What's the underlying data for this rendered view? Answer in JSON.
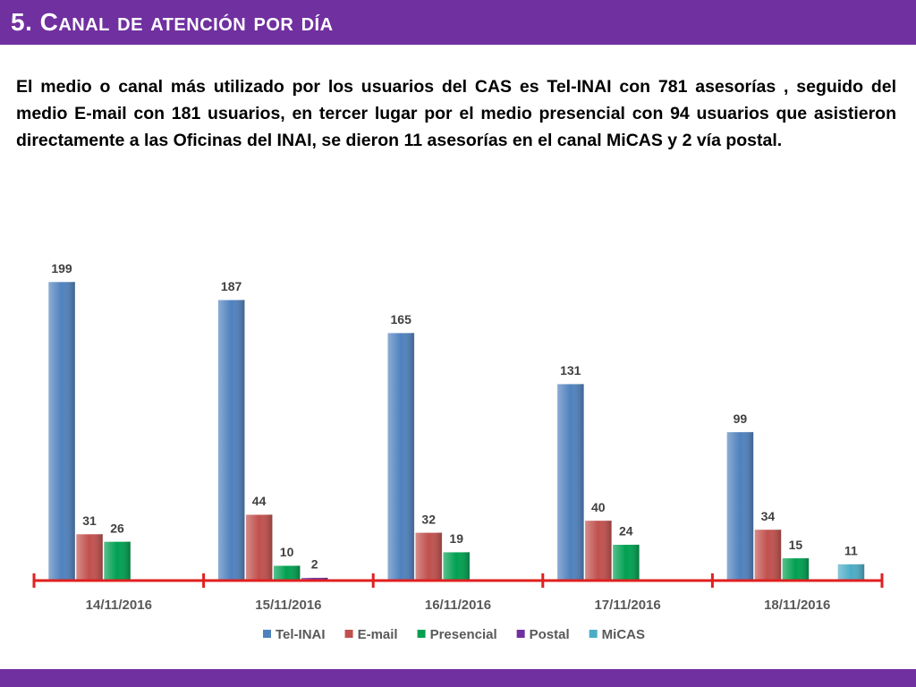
{
  "title": "5. Canal de atención por día",
  "intro_text": "El medio o canal más utilizado por los usuarios del CAS es Tel-INAI con 781 asesorías , seguido del medio E-mail con 181 usuarios, en tercer lugar por el medio presencial con 94 usuarios que  asistieron directamente a las Oficinas del INAI, se dieron 11 asesorías en el canal MiCAS y 2 vía postal.",
  "colors": {
    "header": "#7030a0",
    "axis": "#e02020"
  },
  "chart_data": {
    "type": "bar",
    "categories": [
      "14/11/2016",
      "15/11/2016",
      "16/11/2016",
      "17/11/2016",
      "18/11/2016"
    ],
    "series": [
      {
        "name": "Tel-INAI",
        "color": "#4f81bd",
        "values": [
          199,
          187,
          165,
          131,
          99
        ]
      },
      {
        "name": "E-mail",
        "color": "#c0504d",
        "values": [
          31,
          44,
          32,
          40,
          34
        ]
      },
      {
        "name": "Presencial",
        "color": "#00a050",
        "values": [
          26,
          10,
          19,
          24,
          15
        ]
      },
      {
        "name": "Postal",
        "color": "#7030a0",
        "values": [
          null,
          2,
          null,
          null,
          null
        ]
      },
      {
        "name": "MiCAS",
        "color": "#4bacc6",
        "values": [
          null,
          null,
          null,
          null,
          11
        ]
      }
    ],
    "ylim": [
      0,
      210
    ],
    "legend_position": "bottom",
    "grid": false
  }
}
